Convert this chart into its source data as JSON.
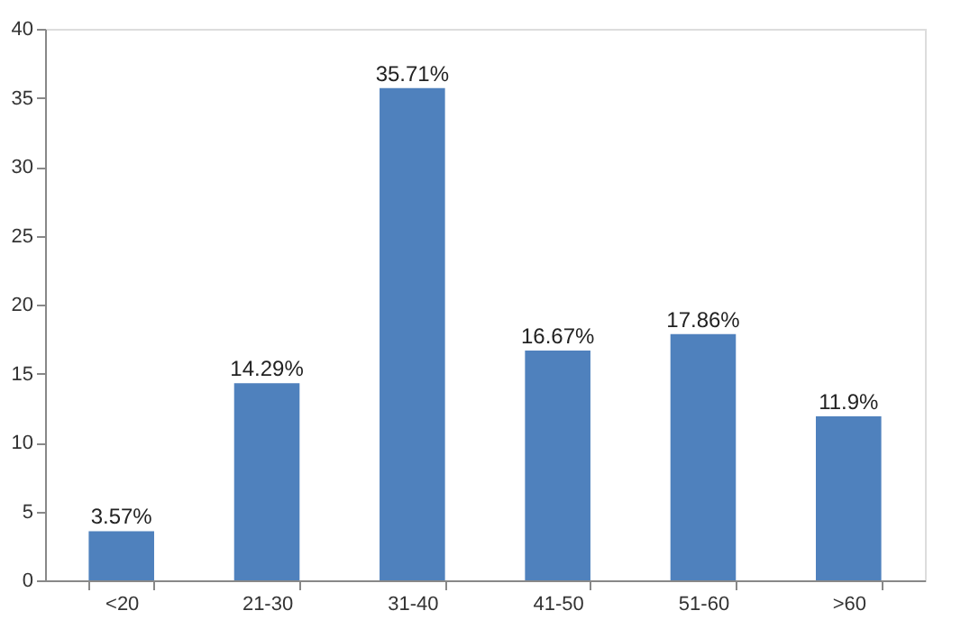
{
  "chart_data": {
    "type": "bar",
    "categories": [
      "<20",
      "21-30",
      "31-40",
      "41-50",
      "51-60",
      ">60"
    ],
    "values": [
      3.57,
      14.29,
      35.71,
      16.67,
      17.86,
      11.9
    ],
    "value_labels": [
      "3.57%",
      "14.29%",
      "35.71%",
      "16.67%",
      "17.86%",
      "11.9%"
    ],
    "color": "#4f81bd",
    "ylim": [
      0,
      40
    ],
    "yticks": [
      0,
      5,
      10,
      15,
      20,
      25,
      30,
      35,
      40
    ],
    "grid": false
  }
}
